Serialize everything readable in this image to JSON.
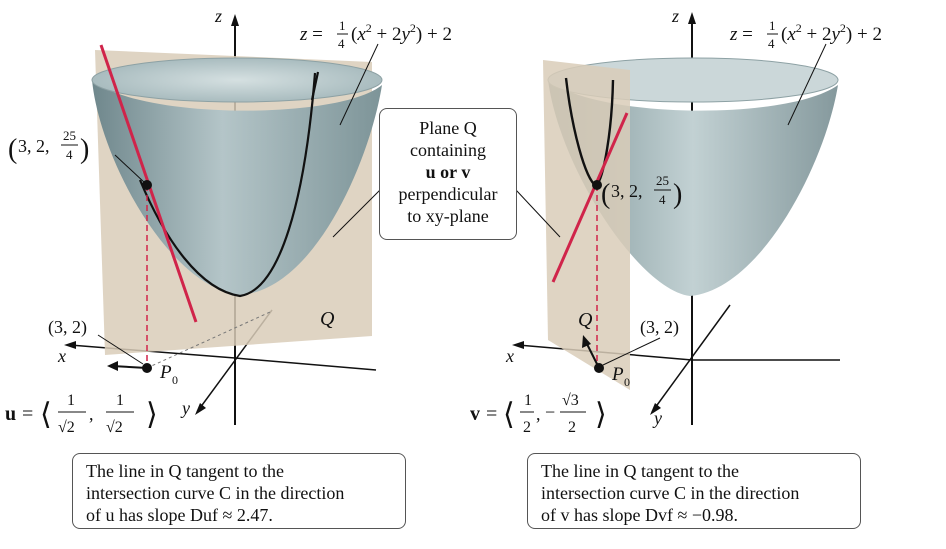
{
  "left": {
    "axis_z": "z",
    "axis_x": "x",
    "axis_y": "y",
    "surface_label": "z = ¼(x² + 2y²) + 2",
    "point_label": "(3, 2, 25/4)",
    "base_point_label": "(3, 2)",
    "base_point_name": "P0",
    "plane_label": "Q",
    "vector_label": "u = ⟨ 1/√2, 1/√2 ⟩",
    "caption_line1": "The line in Q tangent to the",
    "caption_line2": "intersection curve C in the direction",
    "caption_line3": "of u has slope Duf ≈ 2.47."
  },
  "right": {
    "axis_z": "z",
    "axis_x": "x",
    "axis_y": "y",
    "surface_label": "z = ¼(x² + 2y²) + 2",
    "point_label": "(3, 2, 25/4)",
    "base_point_label": "(3, 2)",
    "base_point_name": "P0",
    "plane_label": "Q",
    "vector_label": "v = ⟨ 1/2, −√3/2 ⟩",
    "caption_line1": "The line in Q tangent to the",
    "caption_line2": "intersection curve C in the direction",
    "caption_line3": "of v has slope Dvf ≈ −0.98."
  },
  "center_note": {
    "line1": "Plane Q",
    "line2": "containing",
    "line3": "u or v",
    "line4": "perpendicular",
    "line5": "to xy-plane"
  },
  "colors": {
    "surface": "#9fb3b7",
    "plane": "#d9cdb8",
    "tangent_line": "#d0244a",
    "curve": "#111111"
  }
}
